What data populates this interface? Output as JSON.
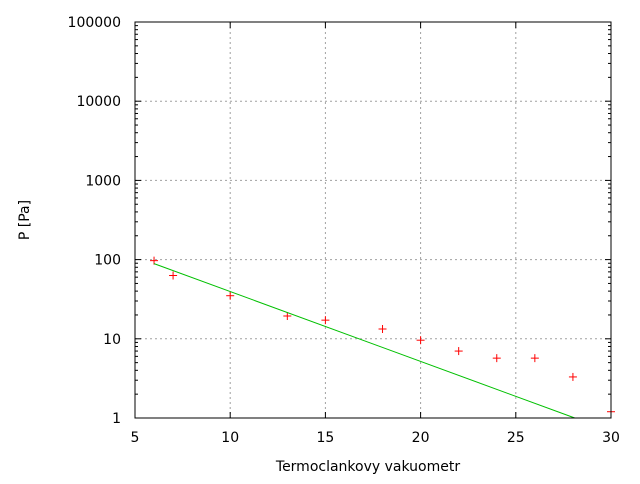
{
  "chart_data": {
    "type": "scatter",
    "title": "",
    "xlabel": "Termoclankovy vakuometr",
    "ylabel": "P [Pa]",
    "xlim": [
      5,
      30
    ],
    "ylim": [
      1,
      100000
    ],
    "yscale": "log",
    "grid": true,
    "x_ticks": [
      "5",
      "10",
      "15",
      "20",
      "25",
      "30"
    ],
    "y_ticks": [
      "1",
      "10",
      "100",
      "1000",
      "10000",
      "100000"
    ],
    "series": [
      {
        "type": "scatter",
        "marker": "+",
        "color": "#ff0000",
        "x": [
          6,
          7,
          10,
          13,
          15,
          18,
          20,
          22,
          24,
          26,
          28,
          30
        ],
        "y": [
          97,
          63,
          35,
          19.4,
          17.2,
          13.3,
          9.6,
          7.0,
          5.7,
          5.7,
          3.3,
          1.2
        ]
      },
      {
        "type": "line",
        "color": "#00c000",
        "x": [
          6,
          28.1
        ],
        "y": [
          89,
          1
        ]
      }
    ]
  }
}
